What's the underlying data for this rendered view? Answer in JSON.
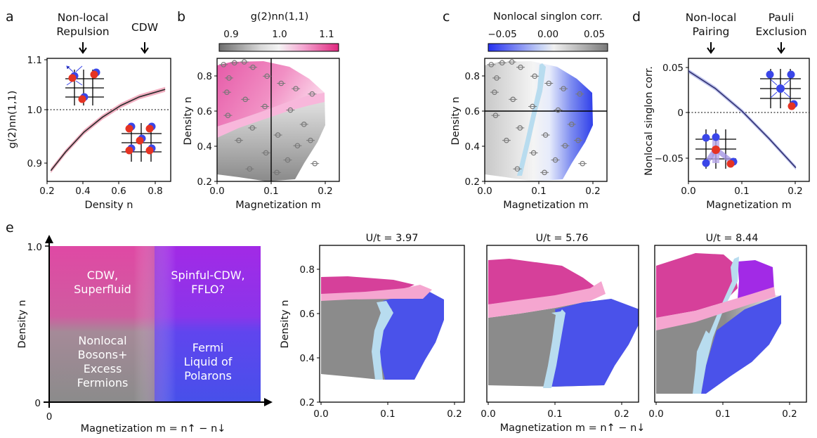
{
  "panels": {
    "a": {
      "letter": "a",
      "ann1": [
        "Non-local",
        "Repulsion"
      ],
      "ann2": "CDW",
      "ylabel": "g(2)nn(1,1)",
      "xlabel": "Density n",
      "xticks": [
        "0.2",
        "0.4",
        "0.6",
        "0.8"
      ],
      "yticks": [
        "0.9",
        "1.0",
        "1.1"
      ]
    },
    "b": {
      "letter": "b",
      "cbar_label": "g(2)nn(1,1)",
      "cbar_ticks": [
        "0.9",
        "1.0",
        "1.1"
      ],
      "ylabel": "Density n",
      "xlabel": "Magnetization m",
      "xticks": [
        "0.0",
        "0.1",
        "0.2"
      ],
      "yticks": [
        "0.2",
        "0.4",
        "0.6",
        "0.8"
      ]
    },
    "c": {
      "letter": "c",
      "cbar_label": "Nonlocal singlon corr.",
      "cbar_ticks": [
        "−0.05",
        "0.00",
        "0.05"
      ],
      "ylabel": "Density n",
      "xlabel": "Magnetization m",
      "xticks": [
        "0.0",
        "0.1",
        "0.2"
      ],
      "yticks": [
        "0.2",
        "0.4",
        "0.6",
        "0.8"
      ]
    },
    "d": {
      "letter": "d",
      "ann1": [
        "Non-local",
        "Pairing"
      ],
      "ann2": [
        "Pauli",
        "Exclusion"
      ],
      "ylabel": "Nonlocal singlon corr.",
      "xlabel": "Magnetization m",
      "xticks": [
        "0.0",
        "0.1",
        "0.2"
      ],
      "yticks": [
        "0.05",
        "0",
        "−0.05"
      ]
    },
    "e": {
      "letter": "e",
      "ylabel": "Density n",
      "xlabel": "Magnetization m = n↑ − n↓",
      "ytick_top": "1.0",
      "ytick_bottom": "0",
      "xtick_origin": "0",
      "regions": {
        "top_left": [
          "CDW,",
          "Superfluid"
        ],
        "top_right": [
          "Spinful-CDW,",
          "FFLO?"
        ],
        "bottom_left": [
          "Nonlocal",
          "Bosons+",
          "Excess",
          "Fermions"
        ],
        "bottom_right": [
          "Fermi",
          "Liquid of",
          "Polarons"
        ]
      },
      "subplots": [
        {
          "title": "U/t = 3.97"
        },
        {
          "title": "U/t = 5.76"
        },
        {
          "title": "U/t = 8.44"
        }
      ],
      "sub_xticks": [
        "0.0",
        "0.1",
        "0.2"
      ],
      "sub_yticks": [
        "0.2",
        "0.4",
        "0.6",
        "0.8"
      ],
      "sub_ylabel": "Density n",
      "sub_xlabel": "Magnetization m = n↑ − n↓"
    }
  },
  "colors": {
    "pink": "#e0409a",
    "curve_a": "#e8708f",
    "blue": "#4050e8",
    "gray": "#8a8a8a",
    "light_blue": "#b8dcef",
    "light_pink": "#f5a6d0",
    "purple": "#a020e0"
  },
  "chart_data": [
    {
      "type": "line",
      "panel": "a",
      "xlabel": "Density n",
      "ylabel": "g(2)nn(1,1)",
      "xlim": [
        0.2,
        0.87
      ],
      "ylim": [
        0.87,
        1.1
      ],
      "reference_line": 1.0,
      "series": [
        {
          "x": [
            0.22,
            0.3,
            0.4,
            0.5,
            0.6,
            0.7,
            0.8,
            0.84
          ],
          "y": [
            0.89,
            0.925,
            0.962,
            0.99,
            1.012,
            1.028,
            1.038,
            1.042
          ]
        }
      ]
    },
    {
      "type": "heatmap",
      "panel": "b",
      "xlabel": "Magnetization m",
      "ylabel": "Density n",
      "xlim": [
        0.0,
        0.225
      ],
      "ylim": [
        0.2,
        0.89
      ],
      "colorbar_range": [
        0.88,
        1.12
      ],
      "reference_lines": {
        "x": 0.1
      }
    },
    {
      "type": "heatmap",
      "panel": "c",
      "xlabel": "Magnetization m",
      "ylabel": "Density n",
      "xlim": [
        0.0,
        0.225
      ],
      "ylim": [
        0.2,
        0.89
      ],
      "colorbar_range": [
        -0.065,
        0.065
      ],
      "reference_lines": {
        "y": 0.6
      }
    },
    {
      "type": "line",
      "panel": "d",
      "xlabel": "Magnetization m",
      "ylabel": "Nonlocal singlon corr.",
      "xlim": [
        0.0,
        0.225
      ],
      "ylim": [
        -0.075,
        0.06
      ],
      "reference_line": 0,
      "series": [
        {
          "x": [
            0.0,
            0.05,
            0.1,
            0.15,
            0.2
          ],
          "y": [
            0.046,
            0.027,
            0.002,
            -0.028,
            -0.06
          ]
        }
      ]
    }
  ]
}
